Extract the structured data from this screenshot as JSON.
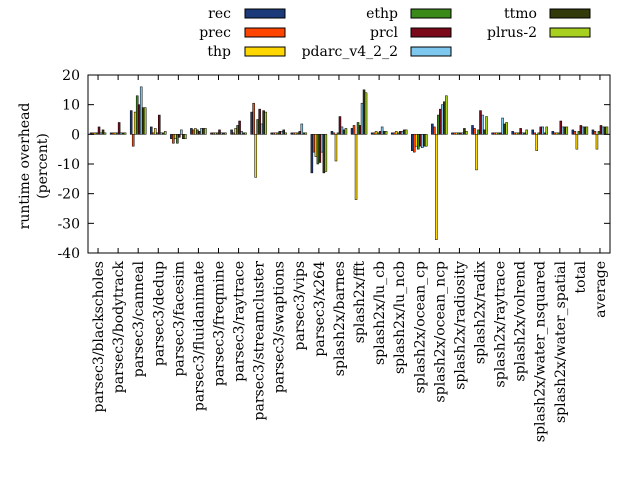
{
  "chart_data": {
    "type": "bar",
    "ylabel": "runtime overhead (percent)",
    "ylabel_lines": [
      "runtime overhead",
      "(percent)"
    ],
    "ylim": [
      -40,
      20
    ],
    "yticks": [
      20,
      10,
      0,
      -10,
      -20,
      -30,
      -40
    ],
    "grid": false,
    "legend_position": "top",
    "categories": [
      "parsec3/blackscholes",
      "parsec3/bodytrack",
      "parsec3/canneal",
      "parsec3/dedup",
      "parsec3/facesim",
      "parsec3/fluidanimate",
      "parsec3/freqmine",
      "parsec3/raytrace",
      "parsec3/streamcluster",
      "parsec3/swaptions",
      "parsec3/vips",
      "parsec3/x264",
      "splash2x/barnes",
      "splash2x/fft",
      "splash2x/lu_cb",
      "splash2x/lu_ncb",
      "splash2x/ocean_cp",
      "splash2x/ocean_ncp",
      "splash2x/radiosity",
      "splash2x/radix",
      "splash2x/raytrace",
      "splash2x/volrend",
      "splash2x/water_nsquared",
      "splash2x/water_spatial",
      "total",
      "average"
    ],
    "series": [
      {
        "name": "rec",
        "color": "#1a3a7a",
        "values": [
          0.5,
          0.5,
          8,
          2.5,
          -1.5,
          2,
          0.5,
          1.5,
          7.5,
          0.5,
          0.5,
          -13,
          1,
          2,
          0.5,
          0.5,
          -5.5,
          3.5,
          0.5,
          3,
          0.5,
          1,
          1.5,
          1,
          1.5,
          1.5
        ]
      },
      {
        "name": "prec",
        "color": "#ff4500",
        "values": [
          0.5,
          0.5,
          -4,
          0.5,
          -3,
          1.5,
          0.5,
          0.5,
          10.5,
          0.5,
          0.5,
          -6,
          0.5,
          3,
          0.5,
          0.5,
          -6,
          2.5,
          0.5,
          2,
          0.5,
          0.5,
          0.5,
          0.5,
          1,
          1
        ]
      },
      {
        "name": "thp",
        "color": "#ffd700",
        "values": [
          0.5,
          0.5,
          7.5,
          2,
          -1.5,
          2,
          0.5,
          2,
          -14.5,
          0.5,
          0.5,
          -7.5,
          -9,
          -22,
          1,
          1,
          -4,
          -35.5,
          0.5,
          -12,
          0.5,
          0.5,
          -5.5,
          0.5,
          -5,
          -5
        ]
      },
      {
        "name": "ethp",
        "color": "#3a8a1a",
        "values": [
          0.5,
          0.5,
          13,
          0.5,
          -3,
          1.5,
          0.5,
          3,
          5,
          0.5,
          0.5,
          -10,
          0.5,
          4,
          0.5,
          0.5,
          -5,
          6.5,
          0.5,
          1.5,
          0.5,
          0.5,
          0.5,
          0.5,
          1,
          1
        ]
      },
      {
        "name": "prcl",
        "color": "#7a0a1a",
        "values": [
          2.5,
          4,
          10,
          6.5,
          -1,
          1,
          1.5,
          4.5,
          8.5,
          1,
          1,
          -9.5,
          6,
          3,
          1,
          1,
          -4,
          8.5,
          0.5,
          8,
          0.5,
          2,
          2.5,
          4.5,
          3,
          3
        ]
      },
      {
        "name": "pdarc_v4_2_2",
        "color": "#7ec8f0",
        "values": [
          0.5,
          0.5,
          16,
          0.5,
          1.5,
          2,
          0.5,
          1,
          3.5,
          1,
          3.5,
          -6,
          2.5,
          10.5,
          2.5,
          1,
          -4.5,
          10,
          0.5,
          6.5,
          5.5,
          0.5,
          2.5,
          2.5,
          2.5,
          2.5
        ]
      },
      {
        "name": "ttmo",
        "color": "#333a0a",
        "values": [
          1.5,
          0.5,
          9,
          0.5,
          -1.5,
          2,
          0.5,
          0.5,
          8,
          1.5,
          0.5,
          -13,
          1.5,
          15,
          1,
          1.5,
          -4,
          11,
          2,
          1.5,
          3.5,
          0.5,
          0.5,
          2.5,
          2.5,
          2.5
        ]
      },
      {
        "name": "plrus-2",
        "color": "#a8d020",
        "values": [
          0.5,
          0.5,
          9,
          1,
          -1.5,
          2,
          0.5,
          0.5,
          7.5,
          0.5,
          0.5,
          -12.5,
          2,
          14,
          1,
          1.5,
          -4,
          13,
          1,
          6,
          4,
          1.5,
          2.5,
          2.5,
          2.5,
          2.5
        ]
      }
    ]
  }
}
